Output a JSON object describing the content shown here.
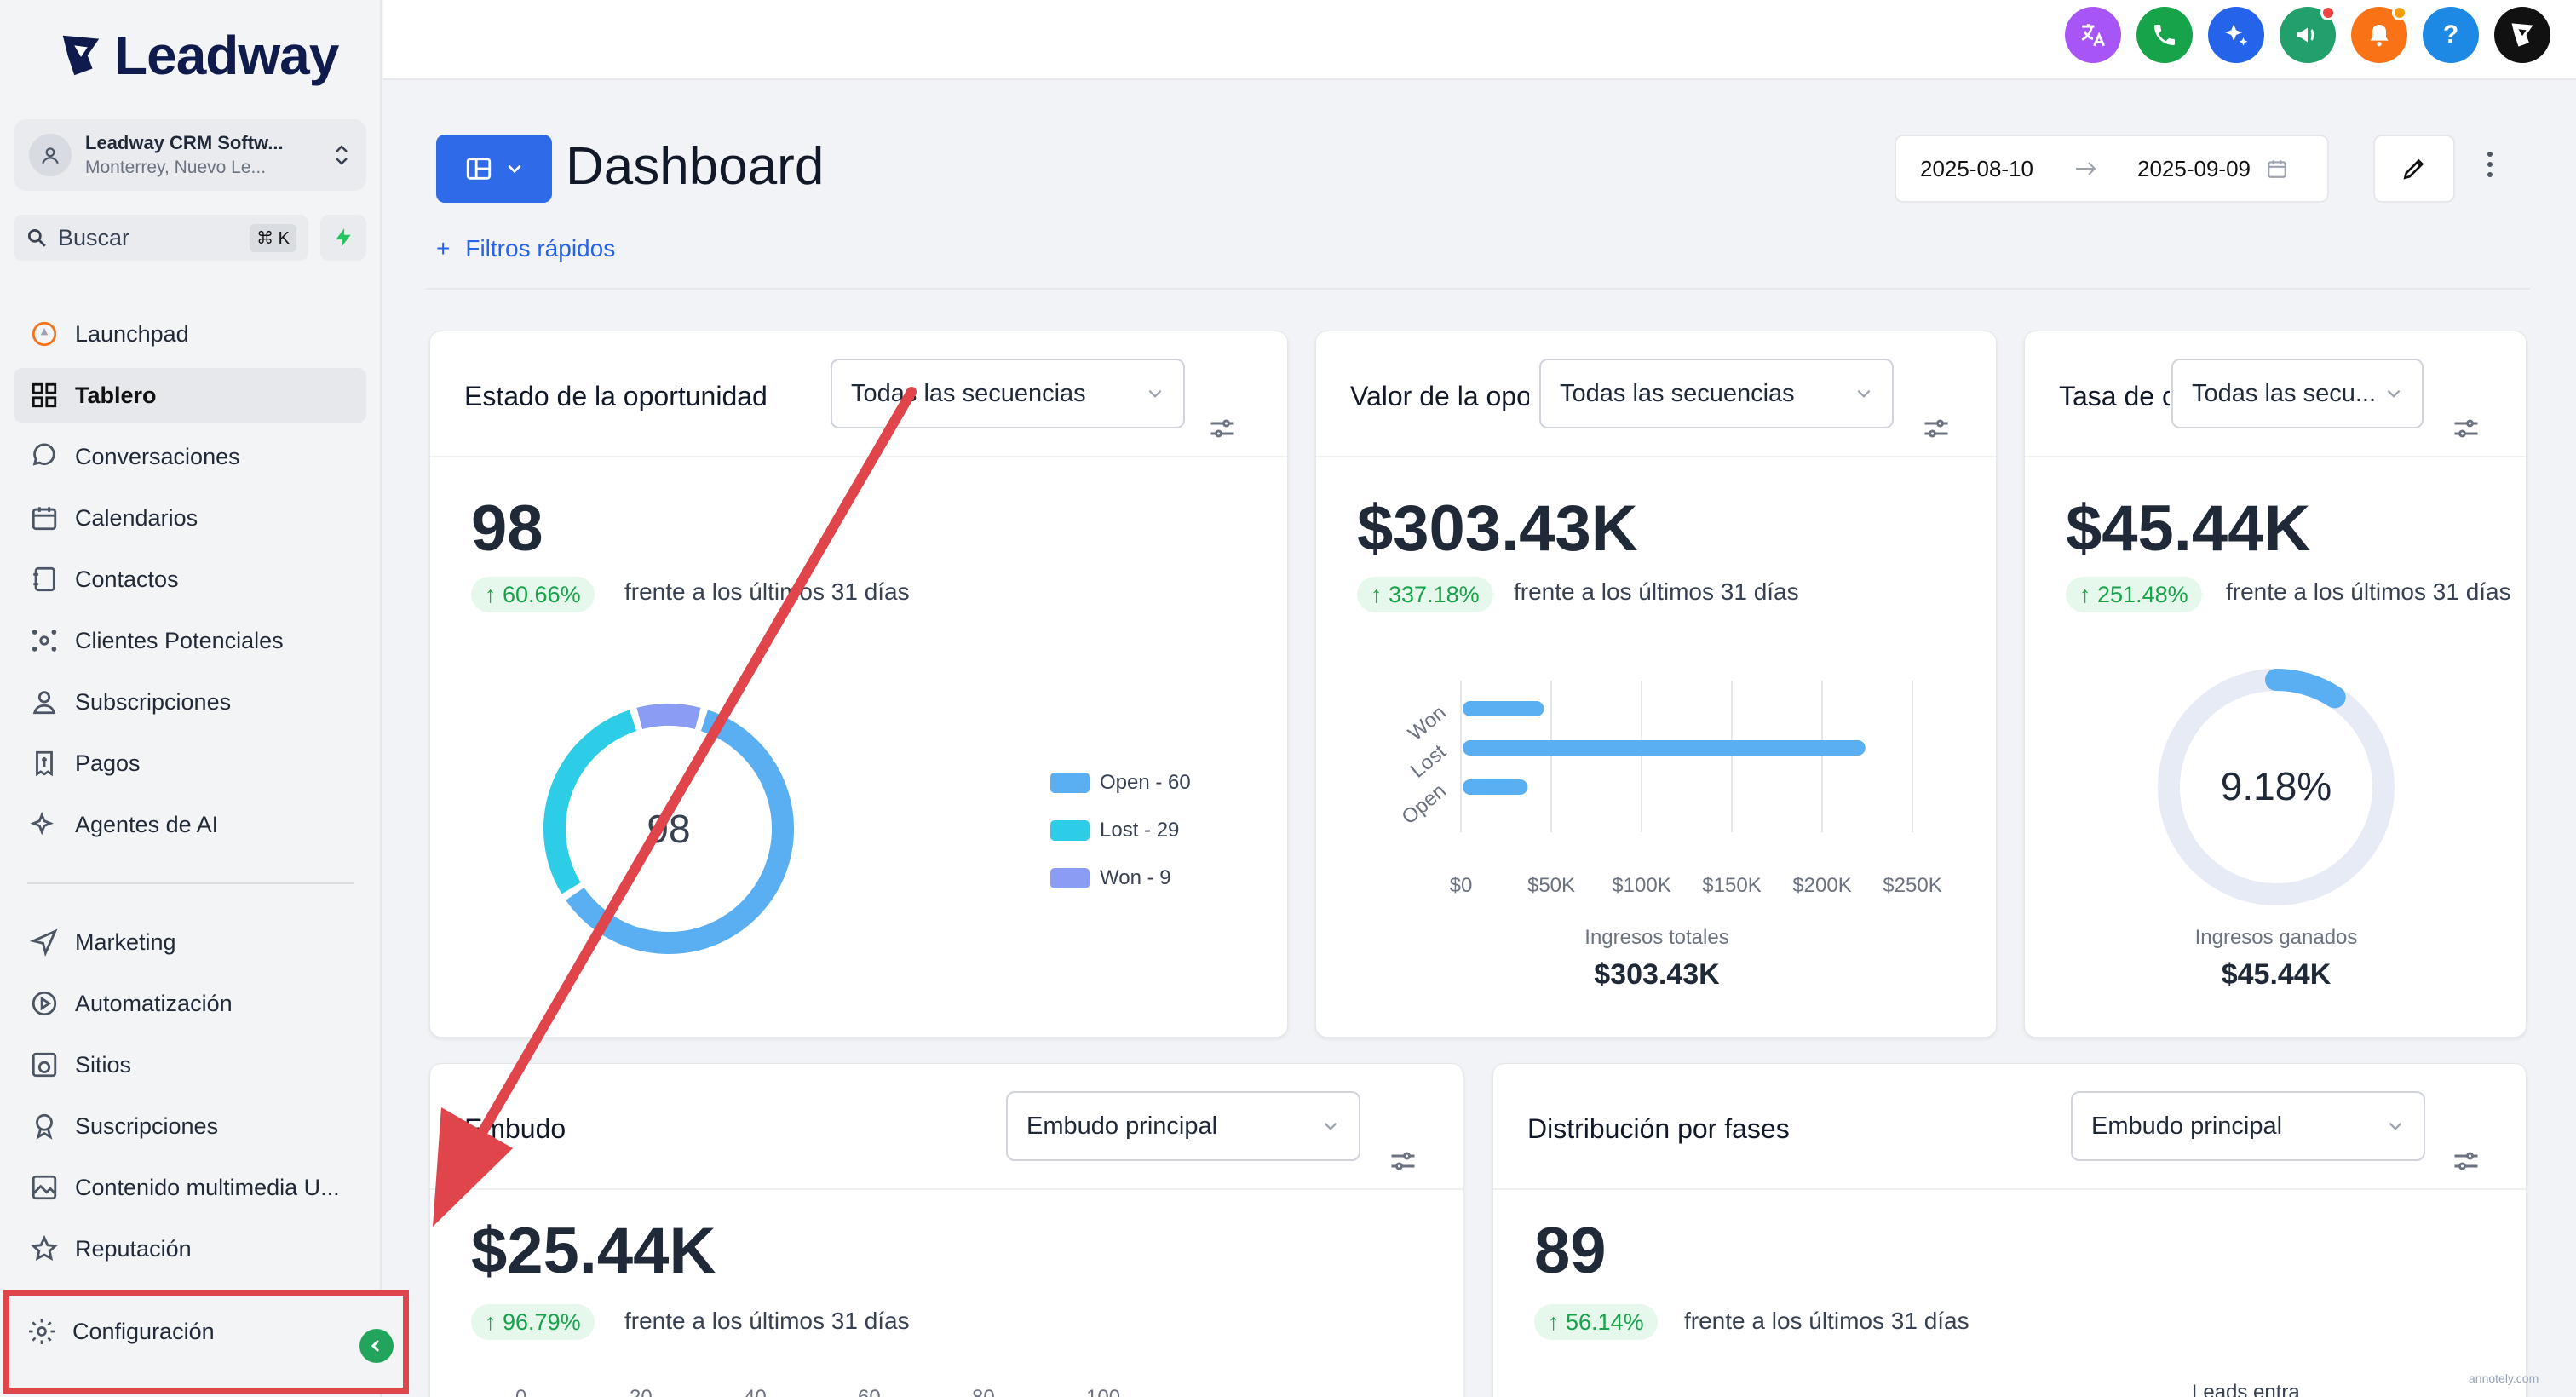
{
  "brand": {
    "name": "Leadway",
    "color": "#0f1b4d"
  },
  "account": {
    "name": "Leadway CRM Softw...",
    "location": "Monterrey, Nuevo Le..."
  },
  "search": {
    "label": "Buscar",
    "shortcut": "⌘ K"
  },
  "nav": [
    {
      "label": "Launchpad",
      "icon": "rocket-icon"
    },
    {
      "label": "Tablero",
      "icon": "grid-icon",
      "active": true
    },
    {
      "label": "Conversaciones",
      "icon": "chat-icon"
    },
    {
      "label": "Calendarios",
      "icon": "calendar-icon"
    },
    {
      "label": "Contactos",
      "icon": "address-book-icon"
    },
    {
      "label": "Clientes Potenciales",
      "icon": "network-icon"
    },
    {
      "label": "Subscripciones",
      "icon": "user-badge-icon"
    },
    {
      "label": "Pagos",
      "icon": "receipt-icon"
    },
    {
      "label": "Agentes de AI",
      "icon": "sparkles-icon"
    }
  ],
  "nav2": [
    {
      "label": "Marketing",
      "icon": "send-icon"
    },
    {
      "label": "Automatización",
      "icon": "play-circle-icon"
    },
    {
      "label": "Sitios",
      "icon": "globe-window-icon"
    },
    {
      "label": "Suscripciones",
      "icon": "award-icon"
    },
    {
      "label": "Contenido multimedia U...",
      "icon": "image-icon"
    },
    {
      "label": "Reputación",
      "icon": "star-icon"
    }
  ],
  "settings": {
    "label": "Configuración"
  },
  "topbar": {
    "colors": {
      "translate": "#a855f7",
      "phone": "#16a34a",
      "ai": "#2563eb",
      "announce": "#22a06b",
      "bell": "#f97316",
      "help": "#1e88e5",
      "profile": "#111111"
    },
    "help_label": "?"
  },
  "header": {
    "title": "Dashboard",
    "date_from": "2025-08-10",
    "date_to": "2025-09-09",
    "quick_filters": "Filtros rápidos"
  },
  "cards": {
    "opp": {
      "title": "Estado de la oportunidad",
      "select": "Todas las secuencias",
      "value": "98",
      "delta": "60.66%",
      "compare": "frente a los últimos 31 días",
      "center": "98",
      "legend": [
        {
          "label": "Open - 60",
          "color": "#5aaef2"
        },
        {
          "label": "Lost - 29",
          "color": "#2dcde8"
        },
        {
          "label": "Won - 9",
          "color": "#8b9cf4"
        }
      ]
    },
    "val": {
      "title": "Valor de la oportunidad",
      "select": "Todas las secuencias",
      "value": "$303.43K",
      "delta": "337.18%",
      "compare": "frente a los últimos 31 días",
      "caption": "Ingresos totales",
      "caption_value": "$303.43K"
    },
    "rate": {
      "title": "Tasa de conversión",
      "select": "Todas las secu...",
      "value": "$45.44K",
      "delta": "251.48%",
      "compare": "frente a los últimos 31 días",
      "gauge_label": "9.18%",
      "caption": "Ingresos ganados",
      "caption_value": "$45.44K"
    },
    "funnel": {
      "title": "Embudo",
      "select": "Embudo principal",
      "value": "$25.44K",
      "delta": "96.79%",
      "compare": "frente a los últimos 31 días",
      "axis_ticks": [
        "0",
        "20",
        "40",
        "60",
        "80",
        "100"
      ]
    },
    "stages": {
      "title": "Distribución por fases",
      "select": "Embudo principal",
      "value": "89",
      "delta": "56.14%",
      "compare": "frente a los últimos 31 días",
      "footer": "Leads entra"
    }
  },
  "chart_data": [
    {
      "type": "pie",
      "title": "Estado de la oportunidad",
      "categories": [
        "Open",
        "Lost",
        "Won"
      ],
      "values": [
        60,
        29,
        9
      ],
      "colors": [
        "#5aaef2",
        "#2dcde8",
        "#8b9cf4"
      ],
      "center_label": "98"
    },
    {
      "type": "bar",
      "orientation": "horizontal",
      "title": "Valor de la oportunidad",
      "categories": [
        "Won",
        "Lost",
        "Open"
      ],
      "values": [
        45000,
        223000,
        36000
      ],
      "xlim": [
        0,
        250000
      ],
      "x_ticks": [
        "$0",
        "$50K",
        "$100K",
        "$150K",
        "$200K",
        "$250K"
      ],
      "xlabel": "Ingresos totales",
      "color": "#5aaef2"
    },
    {
      "type": "gauge",
      "title": "Tasa de conversión",
      "value": 9.18,
      "max": 100,
      "unit": "%",
      "color": "#5aaef2"
    }
  ],
  "watermark": "annotely.com"
}
